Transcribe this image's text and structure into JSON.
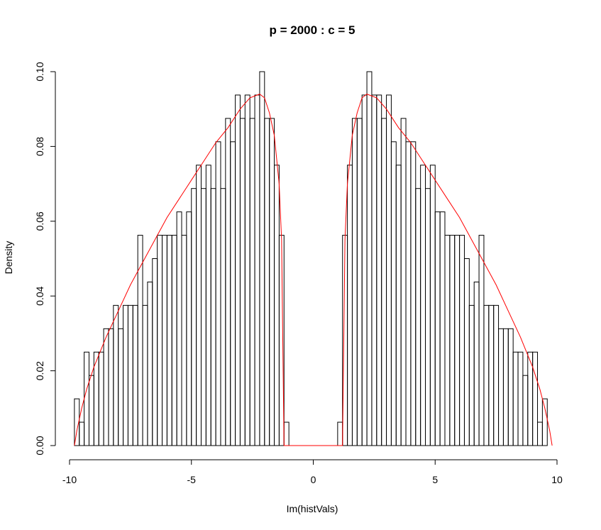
{
  "chart_data": {
    "type": "bar",
    "subtype": "histogram",
    "title": "p = 2000 : c = 5",
    "xlabel": "Im(histVals)",
    "ylabel": "Density",
    "xlim": [
      -10,
      10
    ],
    "ylim": [
      0,
      0.1
    ],
    "x_ticks": [
      -10,
      -5,
      0,
      5,
      10
    ],
    "x_tick_labels": [
      "-10",
      "-5",
      "0",
      "5",
      "10"
    ],
    "y_ticks": [
      0,
      0.02,
      0.04,
      0.06,
      0.08,
      0.1
    ],
    "y_tick_labels": [
      "0.00",
      "0.02",
      "0.04",
      "0.06",
      "0.08",
      "0.10"
    ],
    "bin_start": -10,
    "bin_width": 0.2,
    "densities": [
      0,
      0.0125,
      0.00625,
      0.025,
      0.01875,
      0.025,
      0.025,
      0.03125,
      0.03125,
      0.0375,
      0.03125,
      0.0375,
      0.0375,
      0.0375,
      0.05625,
      0.0375,
      0.04375,
      0.05,
      0.05625,
      0.05625,
      0.05625,
      0.05625,
      0.0625,
      0.05625,
      0.0625,
      0.06875,
      0.075,
      0.06875,
      0.075,
      0.06875,
      0.08125,
      0.06875,
      0.0875,
      0.08125,
      0.09375,
      0.0875,
      0.09375,
      0.0875,
      0.09375,
      0.1,
      0.0875,
      0.0875,
      0.075,
      0.05625,
      0.00625,
      0,
      0,
      0,
      0,
      0,
      0,
      0,
      0,
      0,
      0,
      0.00625,
      0.05625,
      0.075,
      0.0875,
      0.0875,
      0.09375,
      0.1,
      0.09375,
      0.09375,
      0.0875,
      0.09375,
      0.08125,
      0.075,
      0.0875,
      0.08125,
      0.08125,
      0.06875,
      0.075,
      0.06875,
      0.075,
      0.0625,
      0.0625,
      0.05625,
      0.05625,
      0.05625,
      0.05625,
      0.05,
      0.0375,
      0.04375,
      0.05625,
      0.0375,
      0.0375,
      0.0375,
      0.03125,
      0.03125,
      0.03125,
      0.025,
      0.025,
      0.01875,
      0.025,
      0.025,
      0.00625,
      0.0125,
      0
    ],
    "density_curve": {
      "color": "#ff0000",
      "support_inner": 1.2,
      "support_outer": 9.8,
      "points_right": [
        [
          1.2,
          0
        ],
        [
          1.3,
          0.055
        ],
        [
          1.4,
          0.07
        ],
        [
          1.6,
          0.083
        ],
        [
          1.8,
          0.089
        ],
        [
          2.0,
          0.093
        ],
        [
          2.2,
          0.094
        ],
        [
          2.6,
          0.093
        ],
        [
          3.0,
          0.09
        ],
        [
          3.5,
          0.085
        ],
        [
          4.0,
          0.081
        ],
        [
          4.5,
          0.076
        ],
        [
          5.0,
          0.071
        ],
        [
          5.5,
          0.066
        ],
        [
          6.0,
          0.061
        ],
        [
          6.5,
          0.055
        ],
        [
          7.0,
          0.049
        ],
        [
          7.5,
          0.043
        ],
        [
          8.0,
          0.036
        ],
        [
          8.5,
          0.029
        ],
        [
          9.0,
          0.021
        ],
        [
          9.3,
          0.015
        ],
        [
          9.5,
          0.01
        ],
        [
          9.7,
          0.004
        ],
        [
          9.8,
          0
        ]
      ],
      "symmetric": true
    },
    "bar_stroke_color": "#000000",
    "grid": false,
    "legend": "none"
  }
}
